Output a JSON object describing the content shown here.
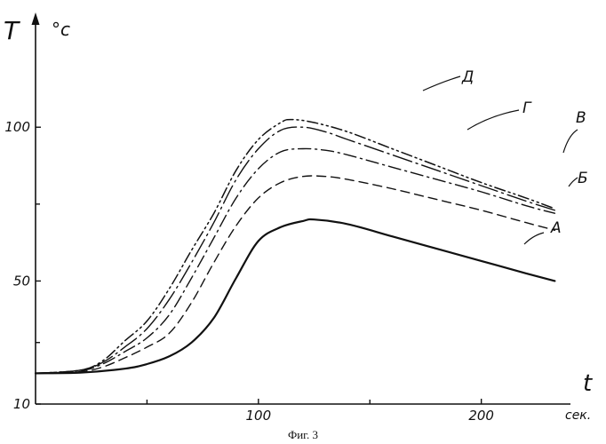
{
  "chart_data": {
    "type": "line",
    "caption": "Фиг. 3",
    "xlabel": "t",
    "xunit": "сек.",
    "ylabel": "T",
    "yunit": "°c",
    "xlim": [
      0,
      240
    ],
    "ylim": [
      10,
      110
    ],
    "xticks": [
      100,
      200
    ],
    "yticks": [
      10,
      50,
      100
    ],
    "grid": false,
    "series": [
      {
        "name": "А",
        "style": "solid",
        "x": [
          0,
          20,
          40,
          50,
          60,
          70,
          80,
          90,
          100,
          110,
          120,
          125,
          140,
          160,
          180,
          200,
          220,
          233
        ],
        "y": [
          20,
          20.2,
          21.5,
          23,
          25.5,
          30,
          38,
          51,
          63,
          67.5,
          69.5,
          70,
          68.5,
          64.5,
          60.5,
          56.5,
          52.5,
          50
        ]
      },
      {
        "name": "Б",
        "style": "dashed",
        "x": [
          0,
          20,
          30,
          40,
          50,
          60,
          70,
          80,
          90,
          100,
          110,
          120,
          130,
          140,
          160,
          180,
          200,
          220,
          233
        ],
        "y": [
          20,
          20.5,
          22,
          25,
          28.5,
          33,
          43,
          56,
          68,
          77,
          82,
          84,
          84,
          83,
          80,
          76.5,
          73,
          69,
          66.5
        ]
      },
      {
        "name": "В",
        "style": "dash-dot",
        "x": [
          0,
          20,
          30,
          40,
          50,
          60,
          70,
          80,
          90,
          100,
          110,
          120,
          130,
          140,
          160,
          180,
          200,
          220,
          233
        ],
        "y": [
          20,
          20.8,
          23,
          27,
          31.5,
          39,
          51,
          64,
          77,
          86.5,
          92,
          93,
          92.5,
          91,
          87,
          83,
          79,
          74.5,
          72
        ]
      },
      {
        "name": "Г",
        "style": "long-dash-dot",
        "x": [
          0,
          20,
          30,
          40,
          50,
          60,
          70,
          80,
          90,
          100,
          110,
          120,
          130,
          140,
          160,
          180,
          200,
          220,
          233
        ],
        "y": [
          20,
          21,
          23.5,
          28.5,
          34.5,
          44,
          56,
          69,
          83,
          93,
          99,
          100,
          98.5,
          96,
          91,
          86,
          81,
          76,
          73
        ]
      },
      {
        "name": "Д",
        "style": "dash-double-dot",
        "x": [
          0,
          20,
          30,
          40,
          50,
          60,
          70,
          80,
          90,
          100,
          110,
          115,
          125,
          140,
          160,
          180,
          200,
          220,
          233
        ],
        "y": [
          20,
          21,
          24,
          30.5,
          37,
          47.5,
          60,
          72,
          86,
          96,
          101.5,
          102.5,
          101.5,
          98.5,
          93,
          87.5,
          82,
          77,
          73.5
        ]
      }
    ]
  }
}
